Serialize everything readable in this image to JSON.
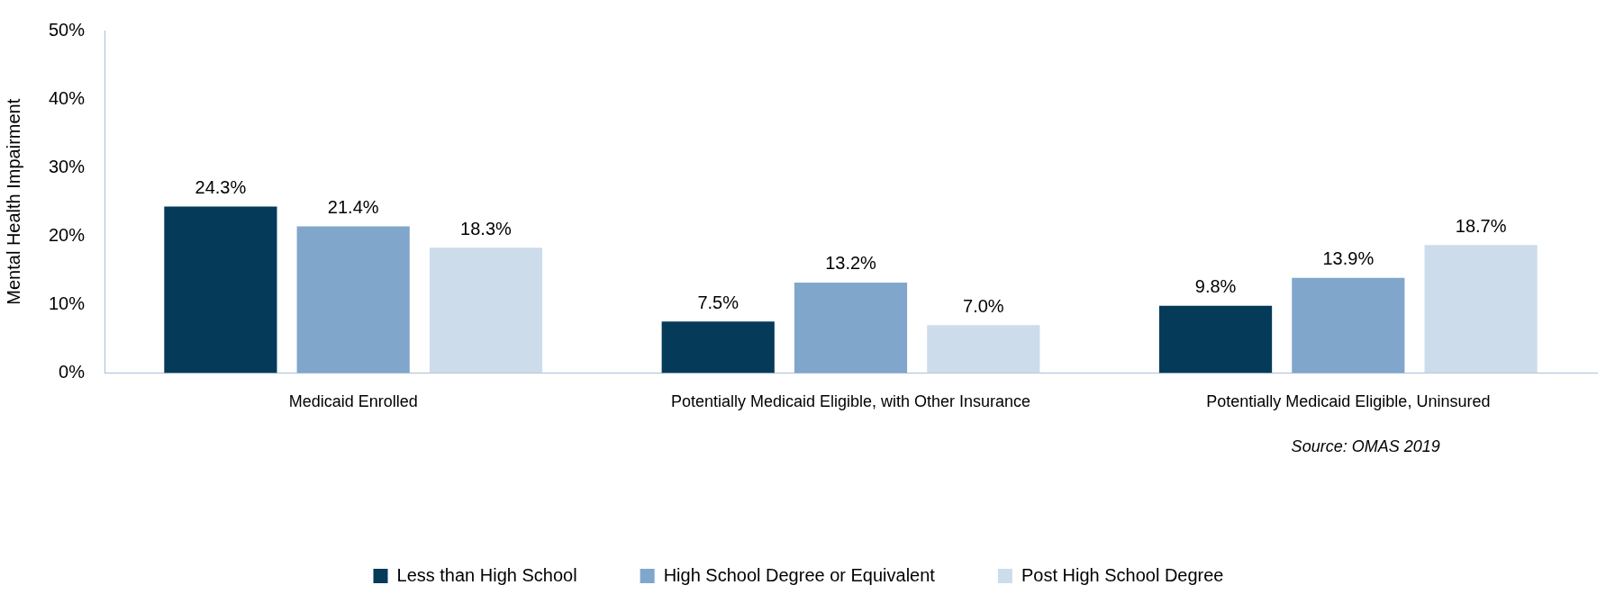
{
  "chart_data": {
    "type": "bar",
    "ylabel": "Mental Health Impairment",
    "categories": [
      "Medicaid Enrolled",
      "Potentially Medicaid Eligible, with Other Insurance",
      "Potentially Medicaid Eligible, Uninsured"
    ],
    "series": [
      {
        "name": "Less than High School",
        "color": "#053a59",
        "values": [
          24.3,
          7.5,
          9.8
        ]
      },
      {
        "name": "High School Degree or Equivalent",
        "color": "#81a6cc",
        "values": [
          21.4,
          13.2,
          13.9
        ]
      },
      {
        "name": "Post High School Degree",
        "color": "#cddcea",
        "values": [
          18.3,
          7.0,
          18.7
        ]
      }
    ],
    "value_labels": [
      [
        "24.3%",
        "7.5%",
        "9.8%"
      ],
      [
        "21.4%",
        "13.2%",
        "13.9%"
      ],
      [
        "18.3%",
        "7.0%",
        "18.7%"
      ]
    ],
    "ylim": [
      0,
      50
    ],
    "yticks": [
      {
        "value": 0,
        "label": "0%"
      },
      {
        "value": 10,
        "label": "10%"
      },
      {
        "value": 20,
        "label": "20%"
      },
      {
        "value": 30,
        "label": "30%"
      },
      {
        "value": 40,
        "label": "40%"
      },
      {
        "value": 50,
        "label": "50%"
      }
    ],
    "grid": false,
    "legend": "bottom",
    "annotations": [
      "Source: OMAS 2019"
    ]
  }
}
